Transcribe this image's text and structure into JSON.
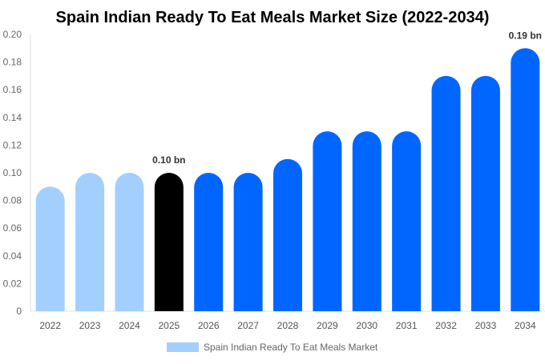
{
  "chart_data": {
    "type": "bar",
    "title": "Spain Indian Ready To Eat Meals Market Size (2022-2034)",
    "categories": [
      "2022",
      "2023",
      "2024",
      "2025",
      "2026",
      "2027",
      "2028",
      "2029",
      "2030",
      "2031",
      "2032",
      "2033",
      "2034"
    ],
    "series": [
      {
        "name": "Spain Indian Ready To Eat Meals Market",
        "values": [
          0.09,
          0.1,
          0.1,
          0.1,
          0.1,
          0.1,
          0.11,
          0.13,
          0.13,
          0.13,
          0.17,
          0.17,
          0.19
        ]
      }
    ],
    "ylim": [
      0,
      0.2
    ],
    "yticks": [
      "0",
      "0.02",
      "0.04",
      "0.06",
      "0.08",
      "0.10",
      "0.12",
      "0.14",
      "0.16",
      "0.18",
      "0.20"
    ],
    "grid": false,
    "legend": "bottom",
    "bar_colors": [
      "#a3cfff",
      "#a3cfff",
      "#a3cfff",
      "#000000",
      "#0066ff",
      "#0066ff",
      "#0066ff",
      "#0066ff",
      "#0066ff",
      "#0066ff",
      "#0066ff",
      "#0066ff",
      "#0066ff"
    ],
    "legend_color": "#a3cfff",
    "annotations": [
      {
        "category": "2025",
        "label": "0.10 bn"
      },
      {
        "category": "2034",
        "label": "0.19 bn"
      }
    ]
  }
}
